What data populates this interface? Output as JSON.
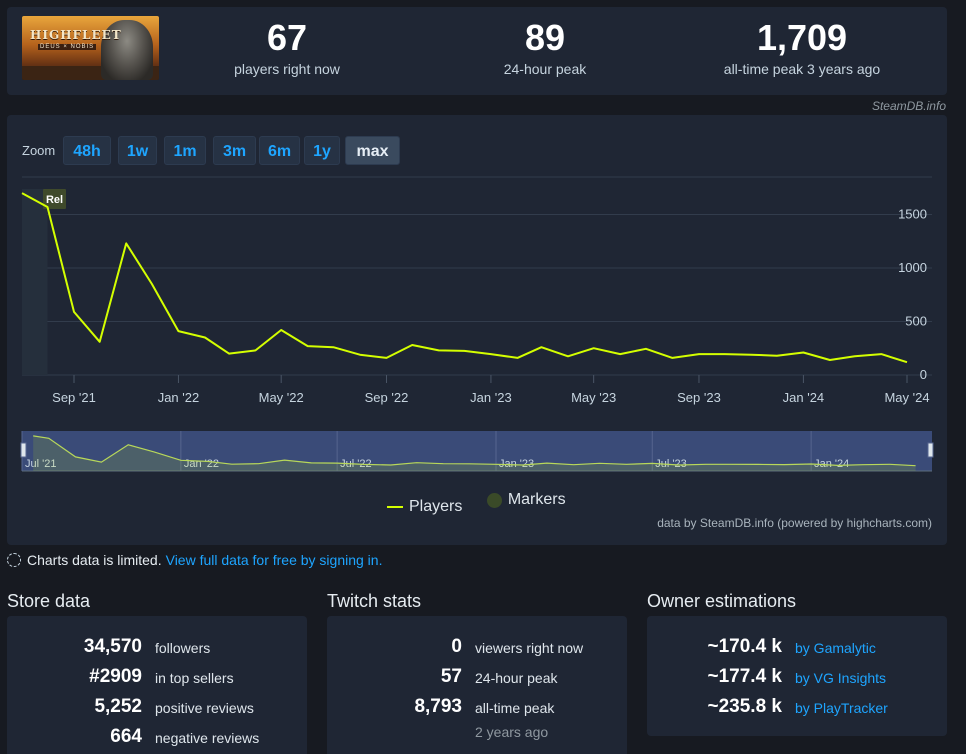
{
  "game": {
    "logo_title": "HIGHFLEET",
    "logo_subtitle": "DEUS × NOBIS"
  },
  "stats": {
    "players_now": {
      "value": "67",
      "label": "players right now"
    },
    "peak_24h": {
      "value": "89",
      "label": "24-hour peak"
    },
    "all_time": {
      "value": "1,709",
      "label": "all-time peak 3 years ago"
    }
  },
  "credit_top": "SteamDB.info",
  "zoom": {
    "label": "Zoom",
    "options": [
      "48h",
      "1w",
      "1m",
      "3m",
      "6m",
      "1y",
      "max"
    ],
    "selected": "max"
  },
  "chart_data": {
    "type": "line",
    "series": [
      {
        "name": "Players",
        "color": "#d4ff00",
        "points": [
          [
            "2021-07-14",
            1700
          ],
          [
            "2021-08-01",
            1570
          ],
          [
            "2021-09-01",
            590
          ],
          [
            "2021-10-01",
            310
          ],
          [
            "2021-11-01",
            1230
          ],
          [
            "2021-12-01",
            850
          ],
          [
            "2022-01-01",
            410
          ],
          [
            "2022-02-01",
            350
          ],
          [
            "2022-03-01",
            200
          ],
          [
            "2022-04-01",
            230
          ],
          [
            "2022-05-01",
            420
          ],
          [
            "2022-06-01",
            270
          ],
          [
            "2022-07-01",
            260
          ],
          [
            "2022-08-01",
            190
          ],
          [
            "2022-09-01",
            160
          ],
          [
            "2022-10-01",
            280
          ],
          [
            "2022-11-01",
            230
          ],
          [
            "2022-12-01",
            225
          ],
          [
            "2023-01-01",
            195
          ],
          [
            "2023-02-01",
            160
          ],
          [
            "2023-03-01",
            260
          ],
          [
            "2023-04-01",
            175
          ],
          [
            "2023-05-01",
            250
          ],
          [
            "2023-06-01",
            195
          ],
          [
            "2023-07-01",
            245
          ],
          [
            "2023-08-01",
            160
          ],
          [
            "2023-09-01",
            195
          ],
          [
            "2023-10-01",
            195
          ],
          [
            "2023-11-01",
            190
          ],
          [
            "2023-12-01",
            180
          ],
          [
            "2024-01-01",
            210
          ],
          [
            "2024-02-01",
            140
          ],
          [
            "2024-03-01",
            175
          ],
          [
            "2024-04-01",
            195
          ],
          [
            "2024-05-01",
            120
          ]
        ]
      }
    ],
    "markers": [
      {
        "date": "2021-07-14",
        "label": "Rel"
      }
    ],
    "x_ticks": [
      "Sep '21",
      "Jan '22",
      "May '22",
      "Sep '22",
      "Jan '23",
      "May '23",
      "Sep '23",
      "Jan '24",
      "May '24"
    ],
    "y_ticks": [
      "0",
      "500",
      "1000",
      "1500"
    ],
    "ylim": [
      0,
      1850
    ],
    "navigator_ticks": [
      "Jul '21",
      "Jan '22",
      "Jul '22",
      "Jan '23",
      "Jul '23",
      "Jan '24"
    ],
    "legend": [
      "Players",
      "Markers"
    ],
    "grid": true,
    "legend_position": "bottom"
  },
  "chart_credit": "data by SteamDB.info (powered by highcharts.com)",
  "limited": {
    "text": "Charts data is limited.",
    "link": "View full data for free by signing in."
  },
  "store": {
    "title": "Store data",
    "rows": [
      {
        "value": "34,570",
        "label": "followers"
      },
      {
        "value": "#2909",
        "label": "in top sellers"
      },
      {
        "value": "5,252",
        "label": "positive reviews"
      },
      {
        "value": "664",
        "label": "negative reviews"
      }
    ]
  },
  "twitch": {
    "title": "Twitch stats",
    "rows": [
      {
        "value": "0",
        "label": "viewers right now"
      },
      {
        "value": "57",
        "label": "24-hour peak"
      },
      {
        "value": "8,793",
        "label": "all-time peak"
      }
    ],
    "all_time_ago": "2 years ago"
  },
  "owners": {
    "title": "Owner estimations",
    "rows": [
      {
        "value": "~170.4 k",
        "label": "by Gamalytic"
      },
      {
        "value": "~177.4 k",
        "label": "by VG Insights"
      },
      {
        "value": "~235.8 k",
        "label": "by PlayTracker"
      }
    ]
  }
}
